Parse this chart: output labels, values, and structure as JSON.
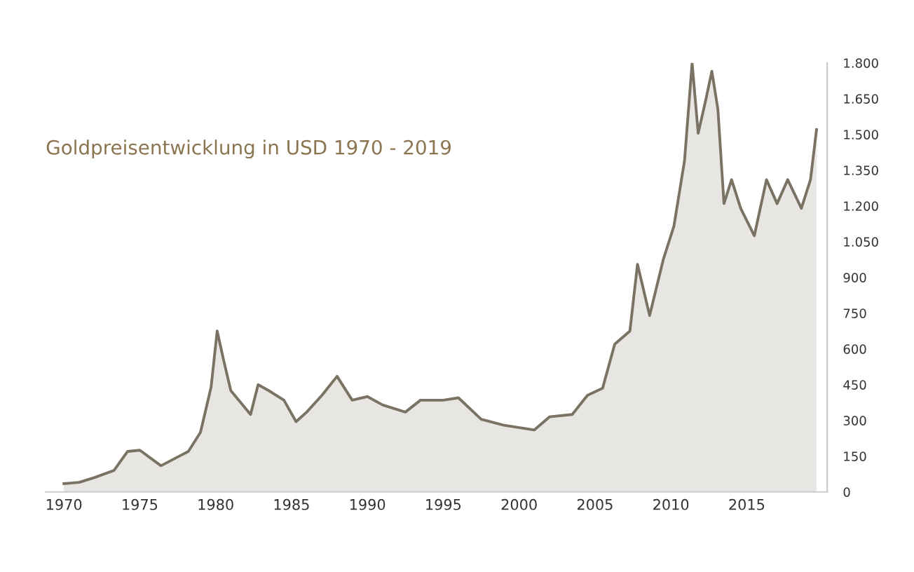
{
  "chart_data": {
    "type": "area",
    "title": "Goldpreisentwicklung in USD 1970 - 2019",
    "x": [
      1970,
      1971,
      1972,
      1973.3,
      1974.2,
      1975,
      1976.4,
      1978.2,
      1979,
      1979.7,
      1980.1,
      1980.5,
      1981,
      1982.3,
      1982.8,
      1983.5,
      1984.5,
      1985.3,
      1986,
      1987,
      1988,
      1989,
      1990,
      1991,
      1992.5,
      1993.5,
      1995,
      1996,
      1997.5,
      1999,
      2001,
      2002,
      2003.5,
      2004.5,
      2005.5,
      2006.3,
      2007.3,
      2007.8,
      2008.6,
      2009.5,
      2010.2,
      2010.9,
      2011.4,
      2011.8,
      2012.3,
      2012.7,
      2013.1,
      2013.5,
      2014,
      2014.6,
      2015.5,
      2016.3,
      2017,
      2017.7,
      2018.6,
      2019.2,
      2019.6
    ],
    "series": [
      {
        "color": "#7a7262",
        "values": [
          35,
          40,
          60,
          90,
          170,
          175,
          110,
          170,
          250,
          440,
          675,
          560,
          425,
          325,
          450,
          425,
          385,
          295,
          335,
          405,
          485,
          385,
          400,
          365,
          335,
          385,
          385,
          395,
          305,
          280,
          260,
          315,
          325,
          405,
          435,
          620,
          675,
          955,
          740,
          975,
          1115,
          1390,
          1800,
          1505,
          1645,
          1765,
          1605,
          1210,
          1310,
          1190,
          1075,
          1310,
          1210,
          1310,
          1190,
          1310,
          1520
        ]
      }
    ],
    "xlim": [
      1968.8,
      2020.3
    ],
    "ylim": [
      0,
      1800
    ],
    "xticks": [
      1970,
      1975,
      1980,
      1985,
      1990,
      1995,
      2000,
      2005,
      2010,
      2015
    ],
    "yticks": [
      0,
      150,
      300,
      450,
      600,
      750,
      900,
      {
        "value": 1050,
        "label": "1.050"
      },
      {
        "value": 1200,
        "label": "1.200"
      },
      {
        "value": 1350,
        "label": "1.350"
      },
      {
        "value": 1500,
        "label": "1.500"
      },
      {
        "value": 1650,
        "label": "1.650"
      },
      {
        "value": 1800,
        "label": "1.800"
      }
    ],
    "grid": false,
    "legend": false
  }
}
